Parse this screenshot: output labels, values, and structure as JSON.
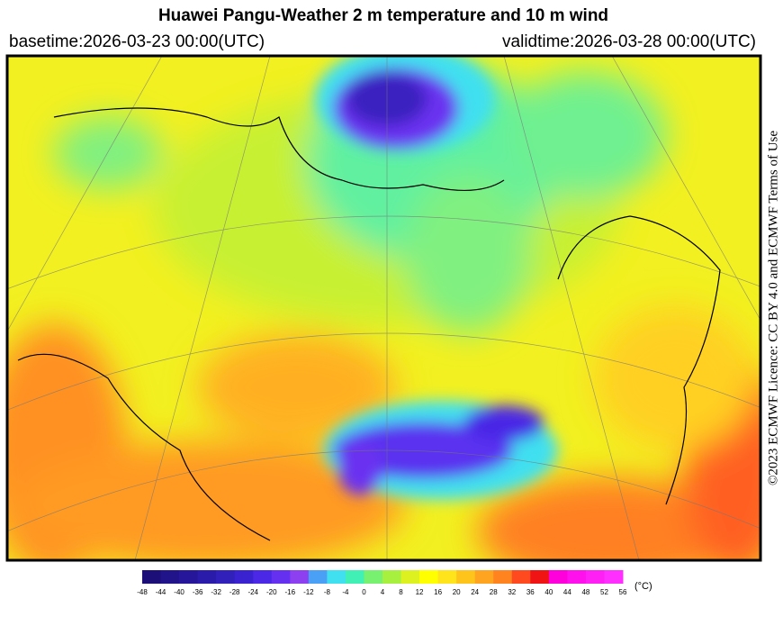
{
  "header": {
    "title": "Huawei Pangu-Weather  2 m temperature and 10 m wind",
    "basetime": "basetime:2026-03-23 00:00(UTC)",
    "validtime": "validtime:2026-03-28 00:00(UTC)"
  },
  "colorbar": {
    "ticks": [
      -48,
      -44,
      -40,
      -36,
      -32,
      -28,
      -24,
      -20,
      -16,
      -12,
      -8,
      -4,
      0,
      4,
      8,
      12,
      16,
      20,
      24,
      28,
      32,
      36,
      40,
      44,
      48,
      52,
      56
    ],
    "colors": [
      "#1c0f78",
      "#21138a",
      "#26179a",
      "#2b1baa",
      "#3120ba",
      "#3a22d0",
      "#4a28e6",
      "#6630f0",
      "#8c40f0",
      "#4aa0f5",
      "#40e0f0",
      "#40f0b4",
      "#78f070",
      "#a8f040",
      "#ddf020",
      "#ffff00",
      "#ffe41c",
      "#ffc41c",
      "#ffa420",
      "#ff8420",
      "#ff4a20",
      "#f01414",
      "#ff00dc",
      "#ff10ec",
      "#ff20f6",
      "#ff30ff"
    ],
    "unit": "(°C)"
  },
  "credit": "©2023 ECMWF Licence: CC BY 4.0 and ECMWF Terms of Use"
}
